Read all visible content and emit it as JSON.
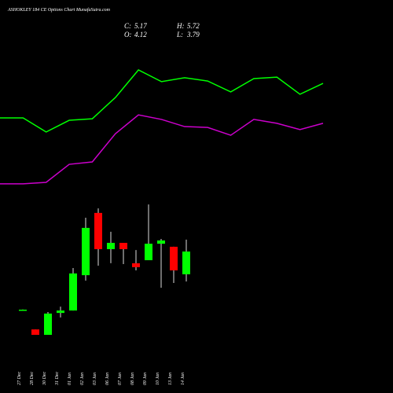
{
  "chart_data": [
    {
      "type": "line",
      "categories": [
        null,
        null,
        null,
        null,
        null,
        null,
        null,
        null,
        null,
        null,
        null,
        null,
        null,
        null,
        null
      ],
      "series": [
        {
          "color": "#00ff00",
          "values": [
            11.33,
            11.33,
            10.68,
            11.22,
            11.29,
            12.27,
            13.54,
            13.0,
            13.18,
            13.03,
            12.53,
            13.14,
            13.21,
            12.42,
            12.92
          ]
        },
        {
          "color": "#cc00cc",
          "values": [
            8.29,
            8.29,
            8.36,
            9.19,
            9.3,
            10.6,
            11.47,
            11.26,
            10.93,
            10.89,
            10.53,
            11.26,
            11.08,
            10.79,
            11.08
          ]
        }
      ]
    },
    {
      "type": "candlestick",
      "title": "ASHOKLEY 184 CE Options Chart MunafaSutra.com",
      "readout": [
        {
          "label": "C:",
          "value": 5.17
        },
        {
          "label": "H:",
          "value": 5.72
        },
        {
          "label": "O:",
          "value": 4.12
        },
        {
          "label": "L:",
          "value": 3.79
        }
      ],
      "up_color": "#00ff00",
      "down_color": "#ff0000",
      "categories": [
        "27 Dec",
        "28 Dec",
        "30 Dec",
        "31 Dec",
        "01 Jan",
        "02 Jan",
        "03 Jan",
        "06 Jan",
        "07 Jan",
        "08 Jan",
        "09 Jan",
        "10 Jan",
        "13 Jan",
        "14 Jan"
      ],
      "open": [
        2.49,
        1.58,
        1.33,
        2.34,
        2.45,
        4.08,
        6.95,
        5.28,
        5.57,
        4.63,
        4.77,
        5.53,
        5.39,
        4.12
      ],
      "high": [
        2.5,
        1.58,
        2.38,
        2.63,
        4.41,
        6.73,
        7.16,
        6.08,
        5.57,
        5.24,
        7.34,
        5.75,
        5.39,
        5.72
      ],
      "low": [
        2.48,
        1.33,
        1.33,
        2.13,
        2.45,
        3.83,
        4.52,
        4.63,
        4.59,
        4.3,
        4.77,
        3.5,
        3.72,
        3.79
      ],
      "close": [
        2.49,
        1.33,
        2.31,
        2.45,
        4.16,
        6.26,
        5.28,
        5.57,
        5.28,
        4.45,
        5.53,
        5.68,
        4.3,
        5.17
      ]
    }
  ]
}
